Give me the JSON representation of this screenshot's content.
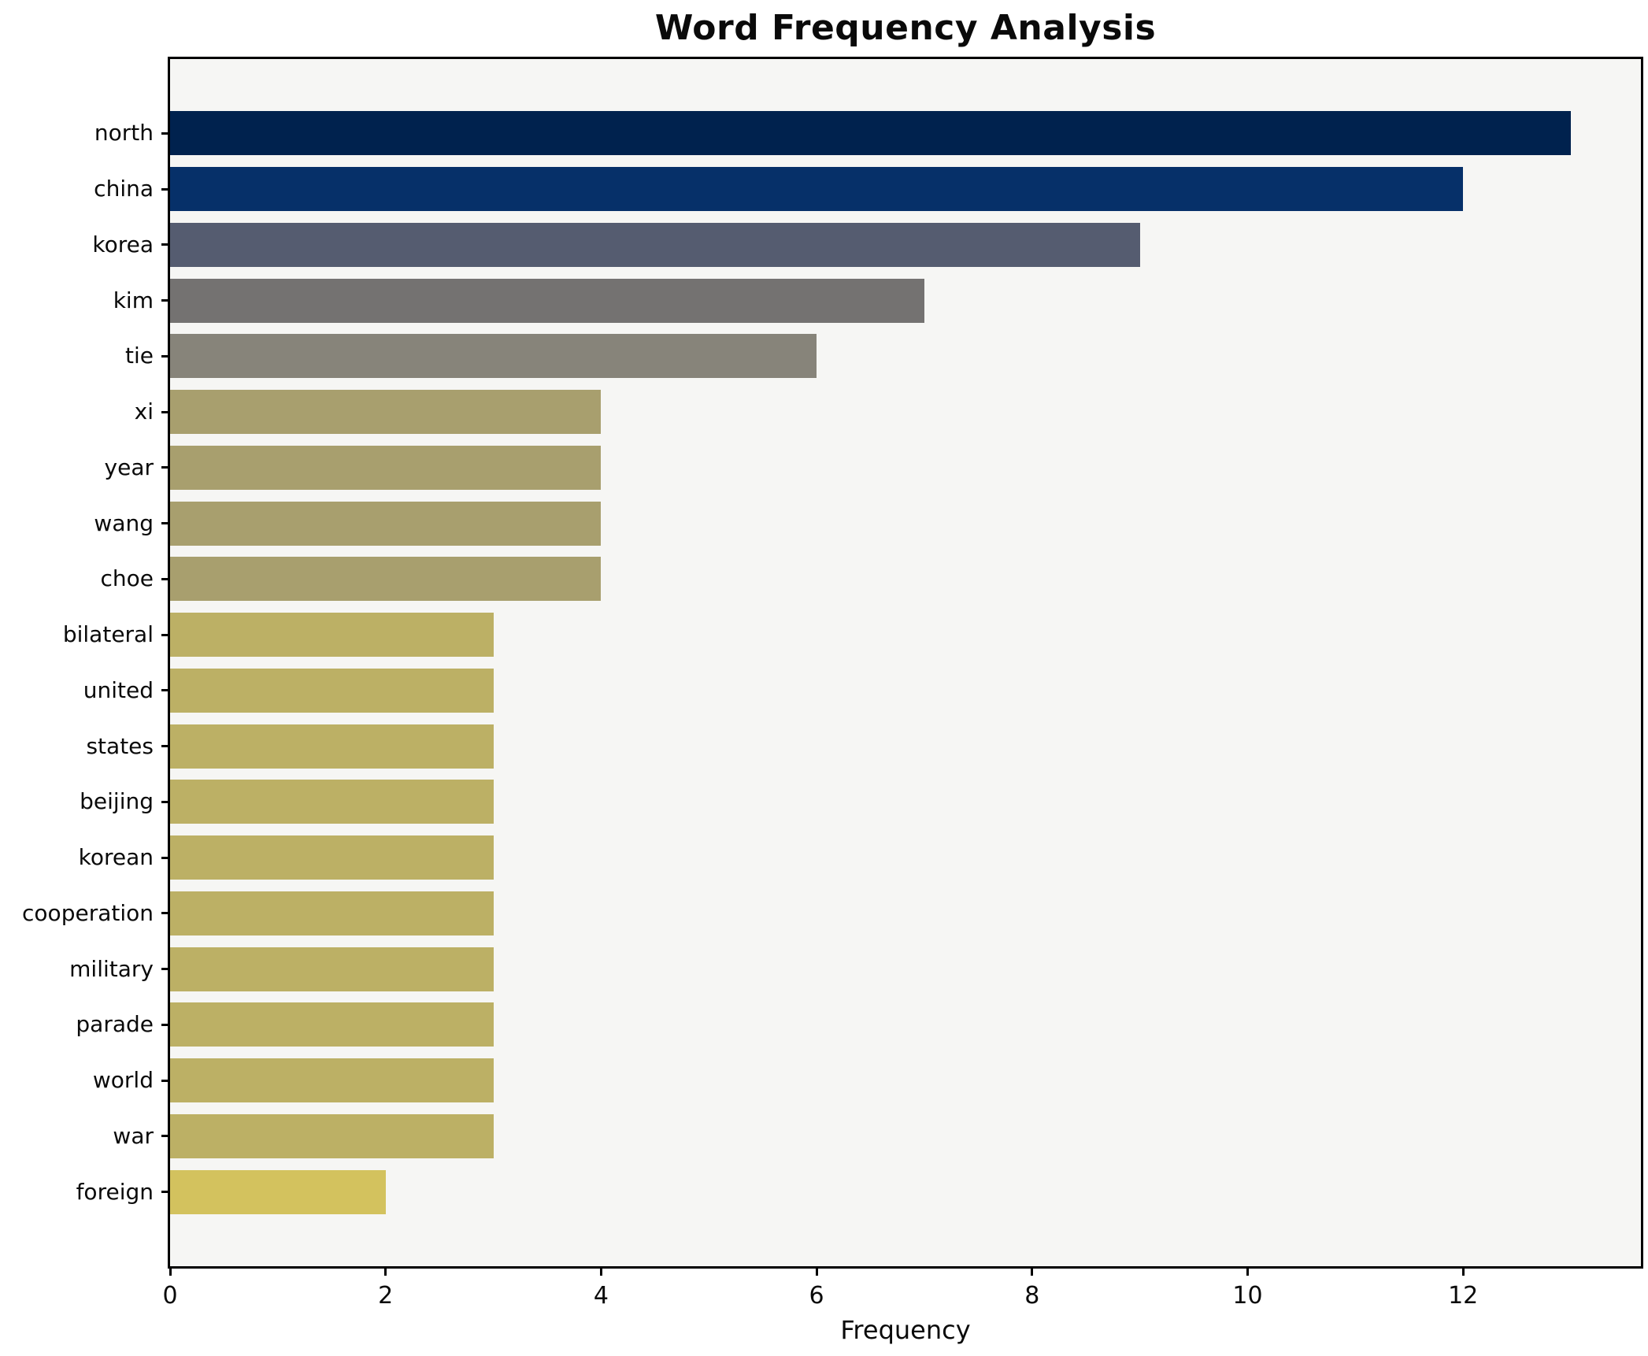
{
  "chart_data": {
    "type": "bar",
    "orientation": "horizontal",
    "title": "Word Frequency Analysis",
    "xlabel": "Frequency",
    "ylabel": "",
    "categories": [
      "north",
      "china",
      "korea",
      "kim",
      "tie",
      "xi",
      "year",
      "wang",
      "choe",
      "bilateral",
      "united",
      "states",
      "beijing",
      "korean",
      "cooperation",
      "military",
      "parade",
      "world",
      "war",
      "foreign"
    ],
    "values": [
      13,
      12,
      9,
      7,
      6,
      4,
      4,
      4,
      4,
      3,
      3,
      3,
      3,
      3,
      3,
      3,
      3,
      3,
      3,
      2
    ],
    "bar_colors": [
      "#00224e",
      "#063069",
      "#555c70",
      "#747271",
      "#87847a",
      "#a89f6e",
      "#a89f6e",
      "#a89f6e",
      "#a89f6e",
      "#bcb065",
      "#bcb065",
      "#bcb065",
      "#bcb065",
      "#bcb065",
      "#bcb065",
      "#bcb065",
      "#bcb065",
      "#bcb065",
      "#bcb065",
      "#d3c25e"
    ],
    "xlim": [
      0,
      13.65
    ],
    "xticks": [
      0,
      2,
      4,
      6,
      8,
      10,
      12
    ],
    "grid": false,
    "legend_position": "none",
    "plot_bg": "#f6f6f4",
    "fig_bg": "#ffffff",
    "spine_color": "#000000"
  }
}
